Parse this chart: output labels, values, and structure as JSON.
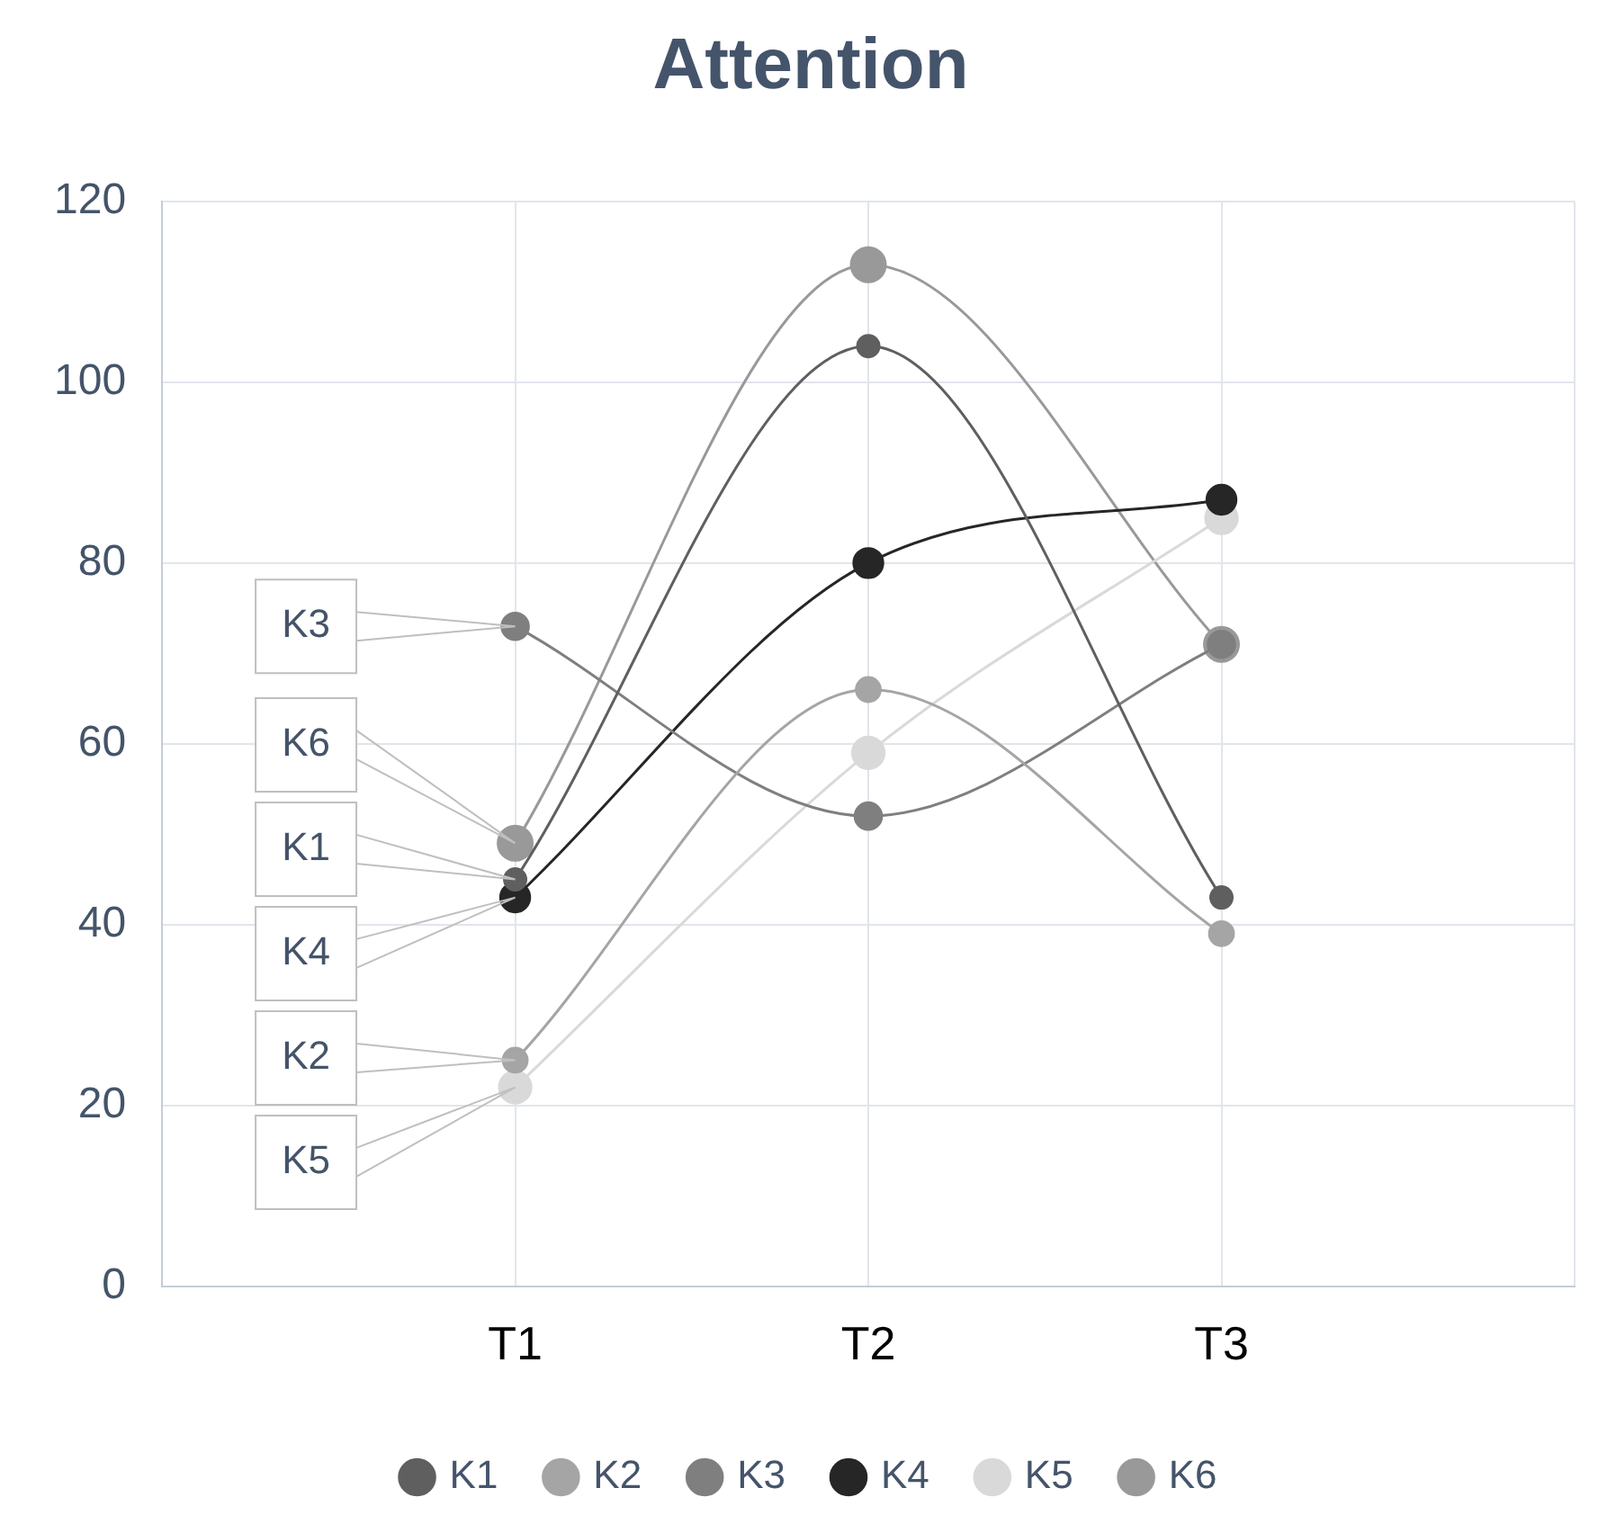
{
  "chart_data": {
    "type": "line",
    "title": "Attention",
    "categories": [
      null,
      "T1",
      "T2",
      "T3",
      null
    ],
    "series": [
      {
        "name": "K1",
        "color": "#5f5f5f",
        "values": [
          null,
          45,
          104,
          43,
          null
        ]
      },
      {
        "name": "K2",
        "color": "#a5a5a5",
        "values": [
          null,
          25,
          66,
          39,
          null
        ]
      },
      {
        "name": "K3",
        "color": "#7f7f7f",
        "values": [
          null,
          73,
          52,
          71,
          null
        ]
      },
      {
        "name": "K4",
        "color": "#262626",
        "values": [
          null,
          43,
          80,
          87,
          null
        ]
      },
      {
        "name": "K5",
        "color": "#d9d9d9",
        "values": [
          null,
          22,
          59,
          85,
          null
        ]
      },
      {
        "name": "K6",
        "color": "#999999",
        "values": [
          null,
          49,
          113,
          71,
          null
        ]
      }
    ],
    "ylim": [
      0,
      120
    ],
    "yticks": [
      0,
      20,
      40,
      60,
      80,
      100,
      120
    ],
    "grid": true,
    "legend": "bottom",
    "marker": "circle",
    "line_style": "solid"
  }
}
